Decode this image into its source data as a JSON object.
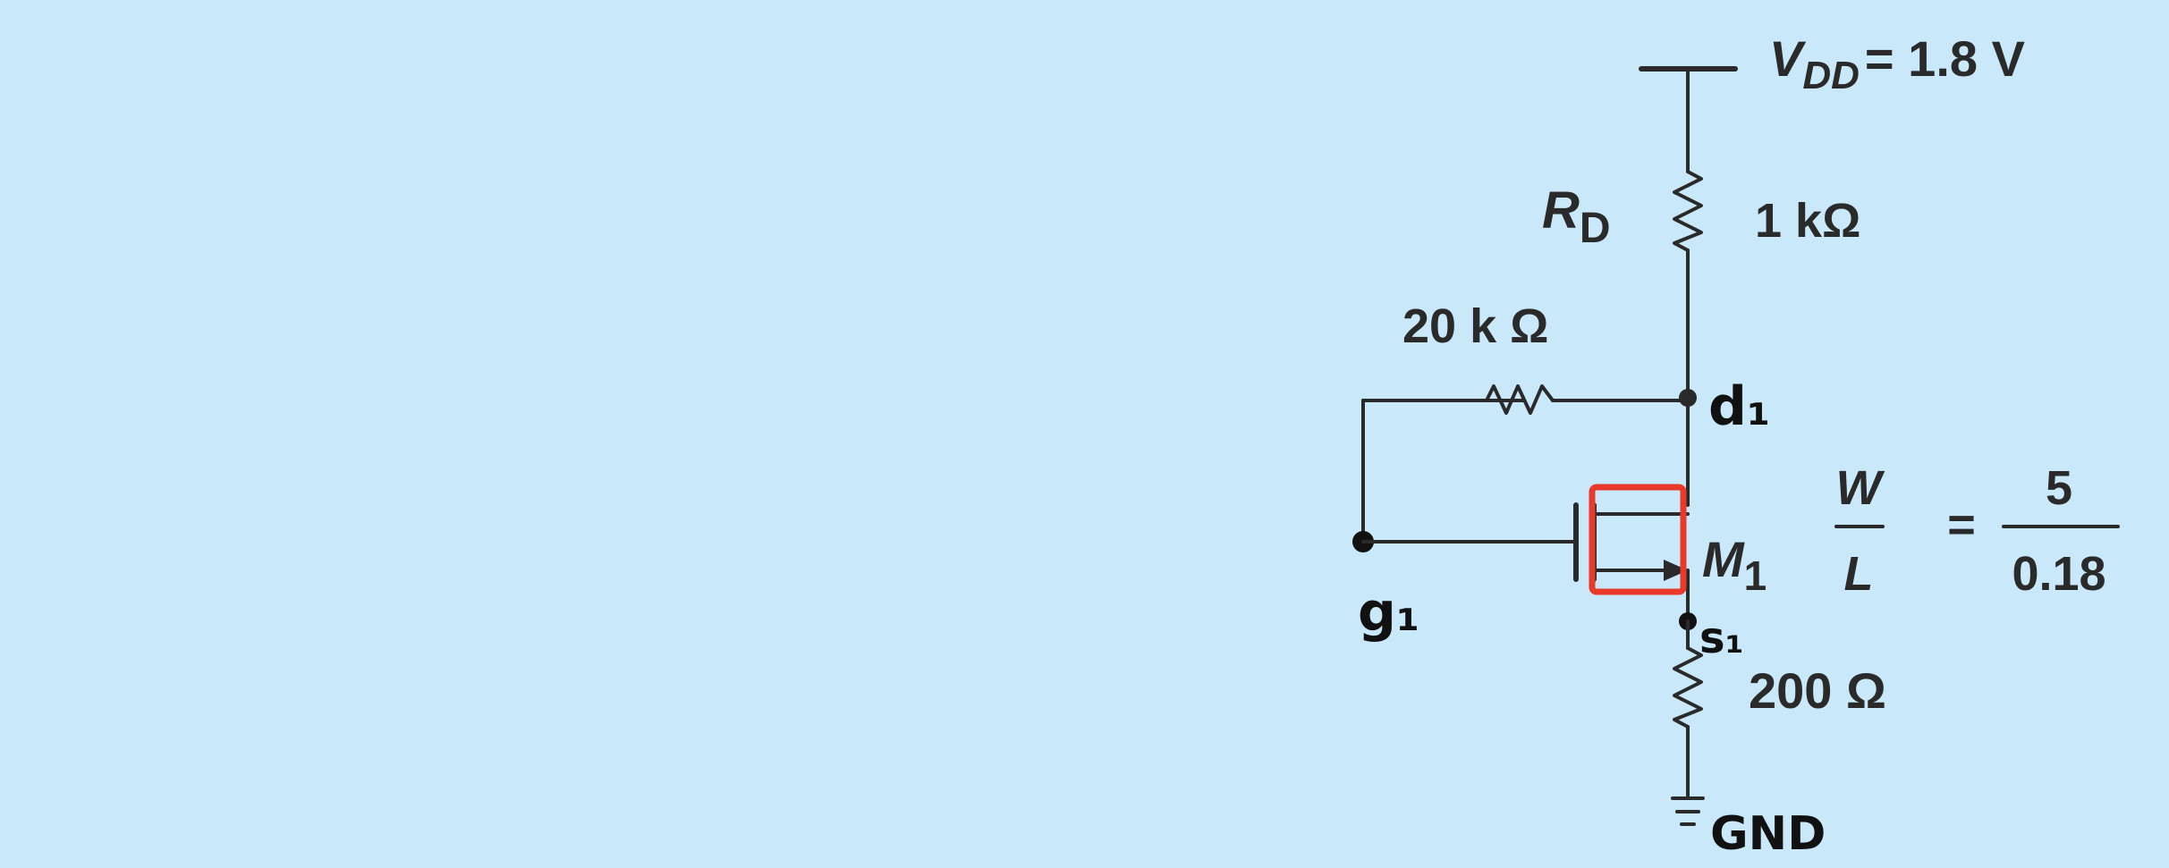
{
  "supply": {
    "symbol": "V",
    "subscript": "DD",
    "value": "= 1.8 V"
  },
  "rd": {
    "symbol": "R",
    "subscript": "D",
    "value": "1 kΩ"
  },
  "feedback_resistor": {
    "value": "20 k Ω"
  },
  "transistor": {
    "symbol": "M",
    "subscript": "1"
  },
  "aspect_ratio": {
    "numerator_label": "W",
    "denominator_label": "L",
    "equals": "=",
    "numerator_value": "5",
    "denominator_value": "0.18"
  },
  "source_resistor": {
    "value": "200 Ω"
  },
  "nodes": {
    "drain": "d₁",
    "gate": "g₁",
    "source": "s₁",
    "ground": "GND"
  },
  "colors": {
    "background": "#c9e9fb",
    "wire": "#2a2a2a",
    "highlight": "#e8392b"
  }
}
